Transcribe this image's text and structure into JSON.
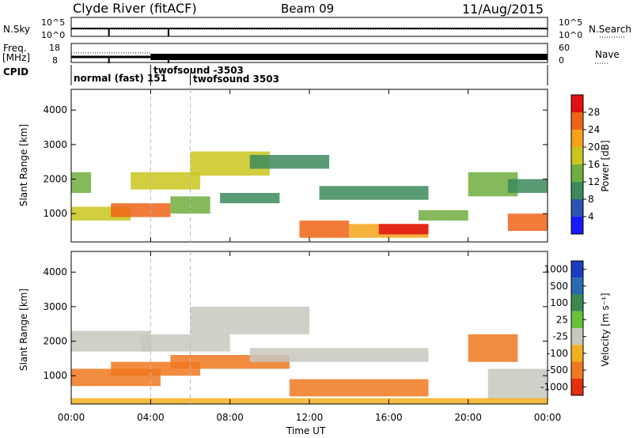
{
  "header": {
    "station": "Clyde River (fitACF)",
    "beam": "Beam 09",
    "date": "11/Aug/2015"
  },
  "top_panels": {
    "nsky_label": "N.Sky",
    "nsearch_label": "N.Search",
    "noise_ticks": [
      "10^5",
      "10^0"
    ],
    "freq_label": "Freq.",
    "freq_unit": "[MHz]",
    "freq_ticks": [
      "18",
      "8"
    ],
    "nave_label": "Nave",
    "nave_ticks": [
      "60",
      "0"
    ],
    "cpid_label": "CPID",
    "cpid_entries": [
      {
        "text": "normal (fast) 151",
        "start_hour": 0
      },
      {
        "text": "twofsound -3503",
        "start_hour": 4.0
      },
      {
        "text": "twofsound 3503",
        "start_hour": 6.0
      }
    ]
  },
  "panels": {
    "ylabel": "Slant Range [km]",
    "xlabel": "Time UT",
    "x_tick_labels": [
      "00:00",
      "04:00",
      "08:00",
      "12:00",
      "16:00",
      "20:00",
      "00:00"
    ],
    "y_tick_labels": [
      "1000",
      "2000",
      "3000",
      "4000"
    ],
    "power_colorbar": {
      "title": "Power [dB]",
      "labels": [
        "4",
        "8",
        "12",
        "16",
        "20",
        "24",
        "28"
      ],
      "colors": [
        "#1a1aff",
        "#2a55b0",
        "#3c8a5c",
        "#6fae3e",
        "#c9c51e",
        "#f5a21a",
        "#f06418",
        "#e01010"
      ]
    },
    "velocity_colorbar": {
      "title": "Velocity [m s⁻¹]",
      "labels": [
        "1000",
        "500",
        "100",
        "25",
        "-25",
        "-100",
        "-500",
        "-1000"
      ],
      "colors": [
        "#1c3cc0",
        "#2a6ab0",
        "#3a8a50",
        "#66c23a",
        "#c8c8c0",
        "#f0b020",
        "#f07820",
        "#e03010"
      ]
    }
  },
  "chart_data": [
    {
      "type": "heatmap",
      "title": "Power",
      "xlabel": "Time UT",
      "ylabel": "Slant Range [km]",
      "xlim": [
        0,
        24
      ],
      "ylim": [
        180,
        4600
      ],
      "value_range": [
        0,
        30
      ],
      "regions": [
        {
          "t0": 0.0,
          "t1": 1.0,
          "r0": 1600,
          "r1": 2200,
          "level": 14
        },
        {
          "t0": 0.0,
          "t1": 3.0,
          "r0": 800,
          "r1": 1200,
          "level": 18
        },
        {
          "t0": 2.0,
          "t1": 5.0,
          "r0": 900,
          "r1": 1300,
          "level": 24
        },
        {
          "t0": 3.0,
          "t1": 6.5,
          "r0": 1700,
          "r1": 2200,
          "level": 18
        },
        {
          "t0": 5.0,
          "t1": 7.0,
          "r0": 1000,
          "r1": 1500,
          "level": 14
        },
        {
          "t0": 6.0,
          "t1": 10.0,
          "r0": 2100,
          "r1": 2800,
          "level": 16
        },
        {
          "t0": 7.5,
          "t1": 10.5,
          "r0": 1300,
          "r1": 1600,
          "level": 10
        },
        {
          "t0": 9.0,
          "t1": 13.0,
          "r0": 2300,
          "r1": 2700,
          "level": 10
        },
        {
          "t0": 11.5,
          "t1": 14.0,
          "r0": 300,
          "r1": 800,
          "level": 24
        },
        {
          "t0": 14.0,
          "t1": 18.0,
          "r0": 300,
          "r1": 700,
          "level": 22
        },
        {
          "t0": 15.5,
          "t1": 18.0,
          "r0": 400,
          "r1": 700,
          "level": 28
        },
        {
          "t0": 12.5,
          "t1": 18.0,
          "r0": 1400,
          "r1": 1800,
          "level": 8
        },
        {
          "t0": 17.5,
          "t1": 20.0,
          "r0": 800,
          "r1": 1100,
          "level": 12
        },
        {
          "t0": 20.0,
          "t1": 22.5,
          "r0": 1500,
          "r1": 2200,
          "level": 14
        },
        {
          "t0": 22.0,
          "t1": 24.0,
          "r0": 500,
          "r1": 1000,
          "level": 26
        },
        {
          "t0": 22.0,
          "t1": 24.0,
          "r0": 1600,
          "r1": 2000,
          "level": 10
        }
      ]
    },
    {
      "type": "heatmap",
      "title": "Velocity",
      "xlabel": "Time UT",
      "ylabel": "Slant Range [km]",
      "xlim": [
        0,
        24
      ],
      "ylim": [
        180,
        4600
      ],
      "value_range": [
        -1000,
        1000
      ],
      "regions": [
        {
          "t0": 0.0,
          "t1": 4.0,
          "r0": 1700,
          "r1": 2300,
          "level": 0
        },
        {
          "t0": 0.0,
          "t1": 4.5,
          "r0": 700,
          "r1": 1200,
          "level": -300
        },
        {
          "t0": 2.0,
          "t1": 6.5,
          "r0": 1000,
          "r1": 1400,
          "level": -300
        },
        {
          "t0": 3.5,
          "t1": 8.0,
          "r0": 1700,
          "r1": 2200,
          "level": 0
        },
        {
          "t0": 6.0,
          "t1": 12.0,
          "r0": 2200,
          "r1": 3000,
          "level": 0
        },
        {
          "t0": 5.0,
          "t1": 11.0,
          "r0": 1200,
          "r1": 1600,
          "level": -300
        },
        {
          "t0": 11.0,
          "t1": 18.0,
          "r0": 400,
          "r1": 900,
          "level": -300
        },
        {
          "t0": 9.0,
          "t1": 18.0,
          "r0": 1400,
          "r1": 1800,
          "level": 0
        },
        {
          "t0": 20.0,
          "t1": 22.5,
          "r0": 1400,
          "r1": 2200,
          "level": -300
        },
        {
          "t0": 21.0,
          "t1": 24.0,
          "r0": 300,
          "r1": 1200,
          "level": 0
        },
        {
          "t0": 0.0,
          "t1": 24.0,
          "r0": 180,
          "r1": 350,
          "level": -60
        }
      ]
    }
  ]
}
